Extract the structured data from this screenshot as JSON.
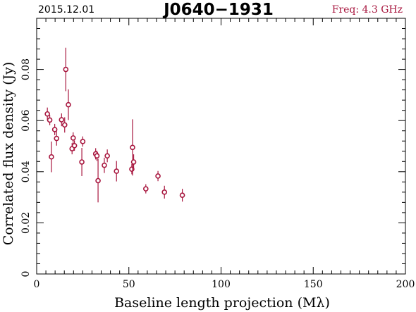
{
  "header": {
    "date": "2015.12.01",
    "source": "J0640−1931",
    "freq": "Freq: 4.3 GHz"
  },
  "colors": {
    "data": "#a8173f",
    "axis": "#000000",
    "freq_text": "#a8173f"
  },
  "chart_data": {
    "type": "scatter",
    "title": "J0640−1931",
    "xlabel": "Baseline length projection (Mλ)",
    "ylabel": "Correlated flux density (Jy)",
    "xlim": [
      0,
      200
    ],
    "ylim": [
      0,
      0.1
    ],
    "xticks": [
      0,
      50,
      100,
      150,
      200
    ],
    "xtick_labels": [
      "0",
      "50",
      "100",
      "150",
      "200"
    ],
    "yticks": [
      0,
      0.02,
      0.04,
      0.06,
      0.08
    ],
    "ytick_labels": [
      "0",
      "0.02",
      "0.04",
      "0.06",
      "0.08"
    ],
    "grid": false,
    "points": [
      {
        "x": 5.8,
        "y": 0.0626,
        "err": 0.0025
      },
      {
        "x": 7.1,
        "y": 0.0602,
        "err": 0.002
      },
      {
        "x": 8.0,
        "y": 0.0458,
        "err": 0.006
      },
      {
        "x": 9.8,
        "y": 0.0565,
        "err": 0.0022
      },
      {
        "x": 10.8,
        "y": 0.053,
        "err": 0.0028
      },
      {
        "x": 13.5,
        "y": 0.0603,
        "err": 0.0025
      },
      {
        "x": 15.2,
        "y": 0.0583,
        "err": 0.003
      },
      {
        "x": 15.8,
        "y": 0.08,
        "err": 0.0085
      },
      {
        "x": 17.2,
        "y": 0.0662,
        "err": 0.006
      },
      {
        "x": 19.2,
        "y": 0.049,
        "err": 0.0022
      },
      {
        "x": 19.8,
        "y": 0.0532,
        "err": 0.0022
      },
      {
        "x": 20.5,
        "y": 0.0502,
        "err": 0.002
      },
      {
        "x": 24.5,
        "y": 0.0438,
        "err": 0.0055
      },
      {
        "x": 25.0,
        "y": 0.0518,
        "err": 0.002
      },
      {
        "x": 32.0,
        "y": 0.047,
        "err": 0.0022
      },
      {
        "x": 32.7,
        "y": 0.0462,
        "err": 0.002
      },
      {
        "x": 33.3,
        "y": 0.0365,
        "err": 0.0085
      },
      {
        "x": 36.7,
        "y": 0.0425,
        "err": 0.003
      },
      {
        "x": 38.3,
        "y": 0.0462,
        "err": 0.0025
      },
      {
        "x": 43.3,
        "y": 0.0402,
        "err": 0.004
      },
      {
        "x": 51.6,
        "y": 0.041,
        "err": 0.002
      },
      {
        "x": 52.0,
        "y": 0.0495,
        "err": 0.011
      },
      {
        "x": 52.6,
        "y": 0.0438,
        "err": 0.003
      },
      {
        "x": 59.2,
        "y": 0.0333,
        "err": 0.0018
      },
      {
        "x": 65.8,
        "y": 0.0383,
        "err": 0.002
      },
      {
        "x": 69.3,
        "y": 0.032,
        "err": 0.0025
      },
      {
        "x": 79.0,
        "y": 0.0308,
        "err": 0.0025
      }
    ]
  }
}
